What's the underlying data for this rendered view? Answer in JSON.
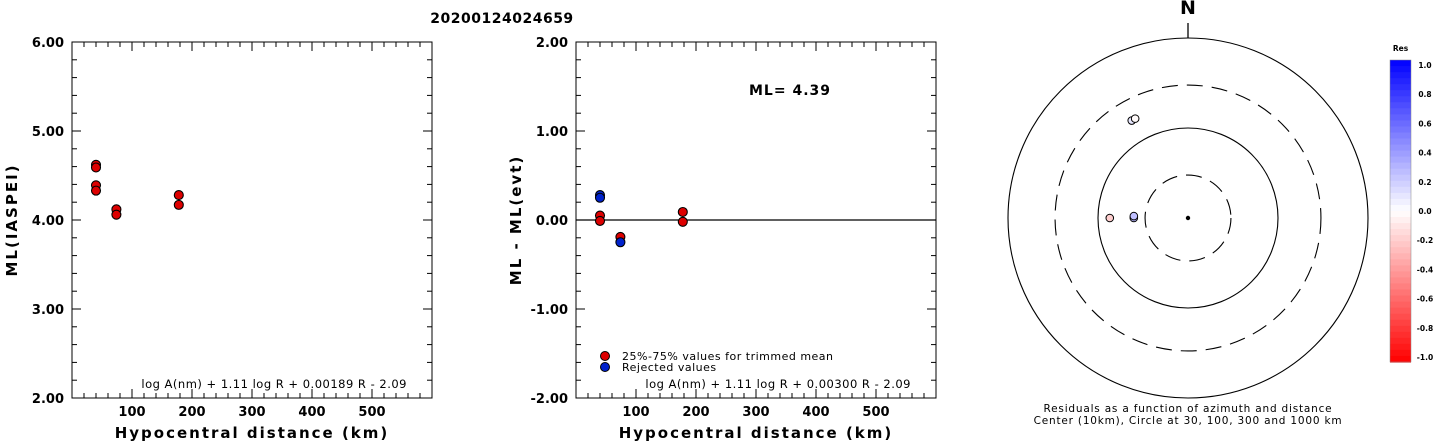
{
  "title": "20200124024659",
  "chart_data": [
    {
      "type": "scatter",
      "xlabel": "Hypocentral distance (km)",
      "ylabel": "ML(IASPEI)",
      "xlim": [
        0,
        600
      ],
      "ylim": [
        2.0,
        6.0
      ],
      "xticks": [
        {
          "v": 100,
          "t": "100"
        },
        {
          "v": 200,
          "t": "200"
        },
        {
          "v": 300,
          "t": "300"
        },
        {
          "v": 400,
          "t": "400"
        },
        {
          "v": 500,
          "t": "500"
        }
      ],
      "yticks": [
        {
          "v": 2,
          "t": "2.00"
        },
        {
          "v": 3,
          "t": "3.00"
        },
        {
          "v": 4,
          "t": "4.00"
        },
        {
          "v": 5,
          "t": "5.00"
        },
        {
          "v": 6,
          "t": "6.00"
        }
      ],
      "formula": "log A(nm) + 1.11 log R + 0.00189 R - 2.09",
      "points": [
        {
          "x": 40,
          "y": 4.62,
          "color": "#dd0000"
        },
        {
          "x": 40,
          "y": 4.59,
          "color": "#dd0000"
        },
        {
          "x": 40,
          "y": 4.39,
          "color": "#dd0000"
        },
        {
          "x": 40,
          "y": 4.33,
          "color": "#dd0000"
        },
        {
          "x": 74,
          "y": 4.12,
          "color": "#dd0000"
        },
        {
          "x": 74,
          "y": 4.06,
          "color": "#dd0000"
        },
        {
          "x": 178,
          "y": 4.28,
          "color": "#dd0000"
        },
        {
          "x": 178,
          "y": 4.17,
          "color": "#dd0000"
        }
      ]
    },
    {
      "type": "scatter",
      "xlabel": "Hypocentral distance (km)",
      "ylabel": "ML - ML(evt)",
      "xlim": [
        0,
        600
      ],
      "ylim": [
        -2.0,
        2.0
      ],
      "xticks": [
        {
          "v": 100,
          "t": "100"
        },
        {
          "v": 200,
          "t": "200"
        },
        {
          "v": 300,
          "t": "300"
        },
        {
          "v": 400,
          "t": "400"
        },
        {
          "v": 500,
          "t": "500"
        }
      ],
      "yticks": [
        {
          "v": -2,
          "t": "-2.00"
        },
        {
          "v": -1,
          "t": "-1.00"
        },
        {
          "v": 0,
          "t": "0.00"
        },
        {
          "v": 1,
          "t": "1.00"
        },
        {
          "v": 2,
          "t": "2.00"
        }
      ],
      "zero_line": 0,
      "ml_label": "ML= 4.39",
      "formula": "log A(nm) + 1.11 log R + 0.00300 R - 2.09",
      "legend": [
        {
          "label": "25%-75% values for trimmed mean",
          "color": "#dd0000"
        },
        {
          "label": "Rejected values",
          "color": "#0022cc"
        }
      ],
      "points": [
        {
          "x": 40,
          "y": 0.28,
          "color": "#0022cc"
        },
        {
          "x": 40,
          "y": 0.25,
          "color": "#0022cc"
        },
        {
          "x": 40,
          "y": 0.05,
          "color": "#dd0000"
        },
        {
          "x": 40,
          "y": -0.01,
          "color": "#dd0000"
        },
        {
          "x": 74,
          "y": -0.19,
          "color": "#dd0000"
        },
        {
          "x": 74,
          "y": -0.25,
          "color": "#0022cc"
        },
        {
          "x": 178,
          "y": 0.09,
          "color": "#dd0000"
        },
        {
          "x": 178,
          "y": -0.02,
          "color": "#dd0000"
        }
      ]
    },
    {
      "type": "scatter",
      "subtype": "polar",
      "north_label": "N",
      "caption_line1": "Residuals as a function of azimuth and distance",
      "caption_line2": "Center (10km), Circle at 30, 100, 300 and 1000 km",
      "rings_km": [
        30,
        100,
        300,
        1000
      ],
      "ring_styles": [
        "dashed",
        "solid",
        "dashed",
        "solid"
      ],
      "points": [
        {
          "azimuth_deg": 330,
          "distance_km": 178,
          "residual": 0.09
        },
        {
          "azimuth_deg": 332,
          "distance_km": 178,
          "residual": -0.02
        },
        {
          "azimuth_deg": 270,
          "distance_km": 74,
          "residual": -0.19
        },
        {
          "azimuth_deg": 270,
          "distance_km": 40,
          "residual": 0.28
        },
        {
          "azimuth_deg": 272,
          "distance_km": 40,
          "residual": 0.25
        }
      ],
      "colorbar": {
        "title": "Res",
        "range": [
          -1.0,
          1.0
        ],
        "ticks": [
          "1.0",
          "0.8",
          "0.6",
          "0.4",
          "0.2",
          "0.0",
          "-0.2",
          "-0.4",
          "-0.6",
          "-0.8",
          "-1.0"
        ],
        "positive_color": "#0000ff",
        "negative_color": "#ff0000"
      }
    }
  ]
}
